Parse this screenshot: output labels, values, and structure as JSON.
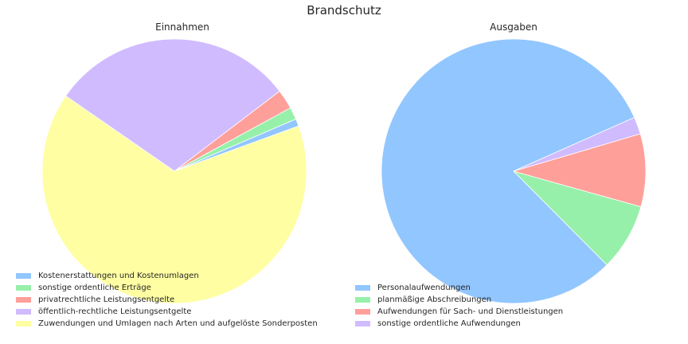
{
  "suptitle": "Brandschutz",
  "chart_data": [
    {
      "type": "pie",
      "title": "Einnahmen",
      "start_angle_deg": 20,
      "direction": "counterclockwise",
      "legend_position": "lower-left",
      "slices": [
        {
          "label": "Kostenerstattungen und Kostenumlagen",
          "value": 0.9,
          "color": "#92c6ff"
        },
        {
          "label": "sonstige ordentliche Erträge",
          "value": 1.5,
          "color": "#97f0aa"
        },
        {
          "label": "privatrechtliche Leistungsentgelte",
          "value": 2.4,
          "color": "#ff9f9a"
        },
        {
          "label": "öffentlich-rechtliche Leistungsentgelte",
          "value": 30.0,
          "color": "#d0bbff"
        },
        {
          "label": "Zuwendungen und Umlagen nach Arten und aufgelöste Sonderposten",
          "value": 65.2,
          "color": "#fffea3"
        }
      ]
    },
    {
      "type": "pie",
      "title": "Ausgaben",
      "start_angle_deg": 24,
      "direction": "counterclockwise",
      "legend_position": "lower-left",
      "slices": [
        {
          "label": "Personalaufwendungen",
          "value": 80.8,
          "color": "#92c6ff"
        },
        {
          "label": "planmäßige Abschreibungen",
          "value": 8.2,
          "color": "#97f0aa"
        },
        {
          "label": "Aufwendungen für Sach- und Dienstleistungen",
          "value": 8.9,
          "color": "#ff9f9a"
        },
        {
          "label": "sonstige ordentliche Aufwendungen",
          "value": 2.1,
          "color": "#d0bbff"
        }
      ]
    }
  ]
}
